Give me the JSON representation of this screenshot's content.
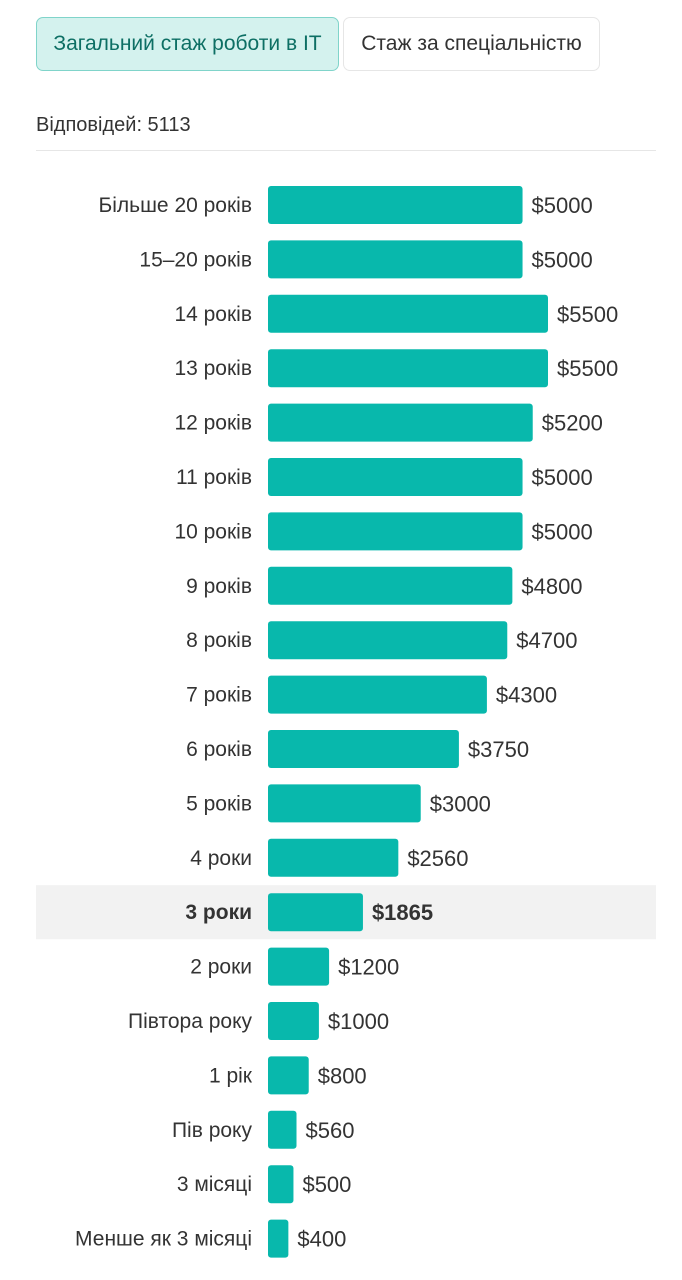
{
  "tabs": [
    {
      "label": "Загальний стаж роботи в IT",
      "active": true
    },
    {
      "label": "Стаж за спеціальністю",
      "active": false
    }
  ],
  "summary": {
    "responses_label": "Відповідей: 5113"
  },
  "colors": {
    "bar": "#08b8ac",
    "highlight_row": "#f2f2f2",
    "tab_active_bg": "#d4f2ee",
    "tab_active_border": "#80d4ca",
    "tab_active_text": "#0d6f64"
  },
  "chart_data": {
    "type": "bar",
    "orientation": "horizontal",
    "categories": [
      "Більше 20 років",
      "15–20 років",
      "14 років",
      "13 років",
      "12 років",
      "11 років",
      "10 років",
      "9 років",
      "8 років",
      "7 років",
      "6 років",
      "5 років",
      "4 роки",
      "3 роки",
      "2 роки",
      "Півтора року",
      "1 рік",
      "Пів року",
      "3 місяці",
      "Менше як 3 місяці"
    ],
    "values": [
      5000,
      5000,
      5500,
      5500,
      5200,
      5000,
      5000,
      4800,
      4700,
      4300,
      3750,
      3000,
      2560,
      1865,
      1200,
      1000,
      800,
      560,
      500,
      400
    ],
    "value_labels": [
      "$5000",
      "$5000",
      "$5500",
      "$5500",
      "$5200",
      "$5000",
      "$5000",
      "$4800",
      "$4700",
      "$4300",
      "$3750",
      "$3000",
      "$2560",
      "$1865",
      "$1200",
      "$1000",
      "$800",
      "$560",
      "$500",
      "$400"
    ],
    "highlighted_category": "3 роки",
    "title": "",
    "xlabel": "",
    "ylabel": "",
    "xlim": [
      0,
      5500
    ],
    "grid": false,
    "legend": "none"
  }
}
